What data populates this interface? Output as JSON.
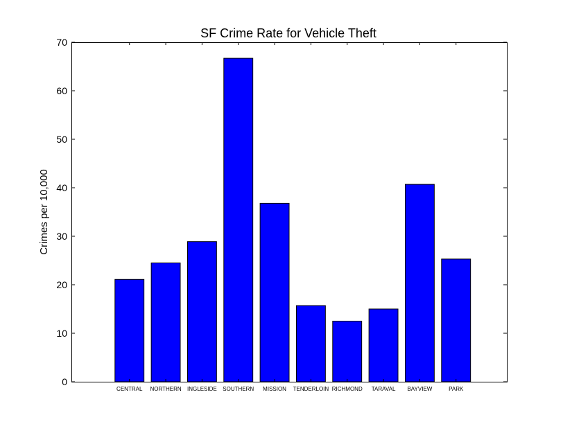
{
  "chart_data": {
    "type": "bar",
    "title": "SF Crime Rate for Vehicle Theft",
    "xlabel": "",
    "ylabel": "Crimes per 10,000",
    "ylim": [
      0,
      70
    ],
    "yticks": [
      0,
      10,
      20,
      30,
      40,
      50,
      60,
      70
    ],
    "xlim": [
      -1.6,
      10.4
    ],
    "categories": [
      "CENTRAL",
      "NORTHERN",
      "INGLESIDE",
      "SOUTHERN",
      "MISSION",
      "TENDERLOIN",
      "RICHMOND",
      "TARAVAL",
      "BAYVIEW",
      "PARK"
    ],
    "values": [
      21.1,
      24.5,
      28.9,
      66.7,
      36.8,
      15.7,
      12.5,
      15.0,
      40.7,
      25.3
    ],
    "bar_width": 0.8,
    "grid": false,
    "colors": {
      "bar": "#0000ff",
      "edge": "#000000"
    }
  }
}
